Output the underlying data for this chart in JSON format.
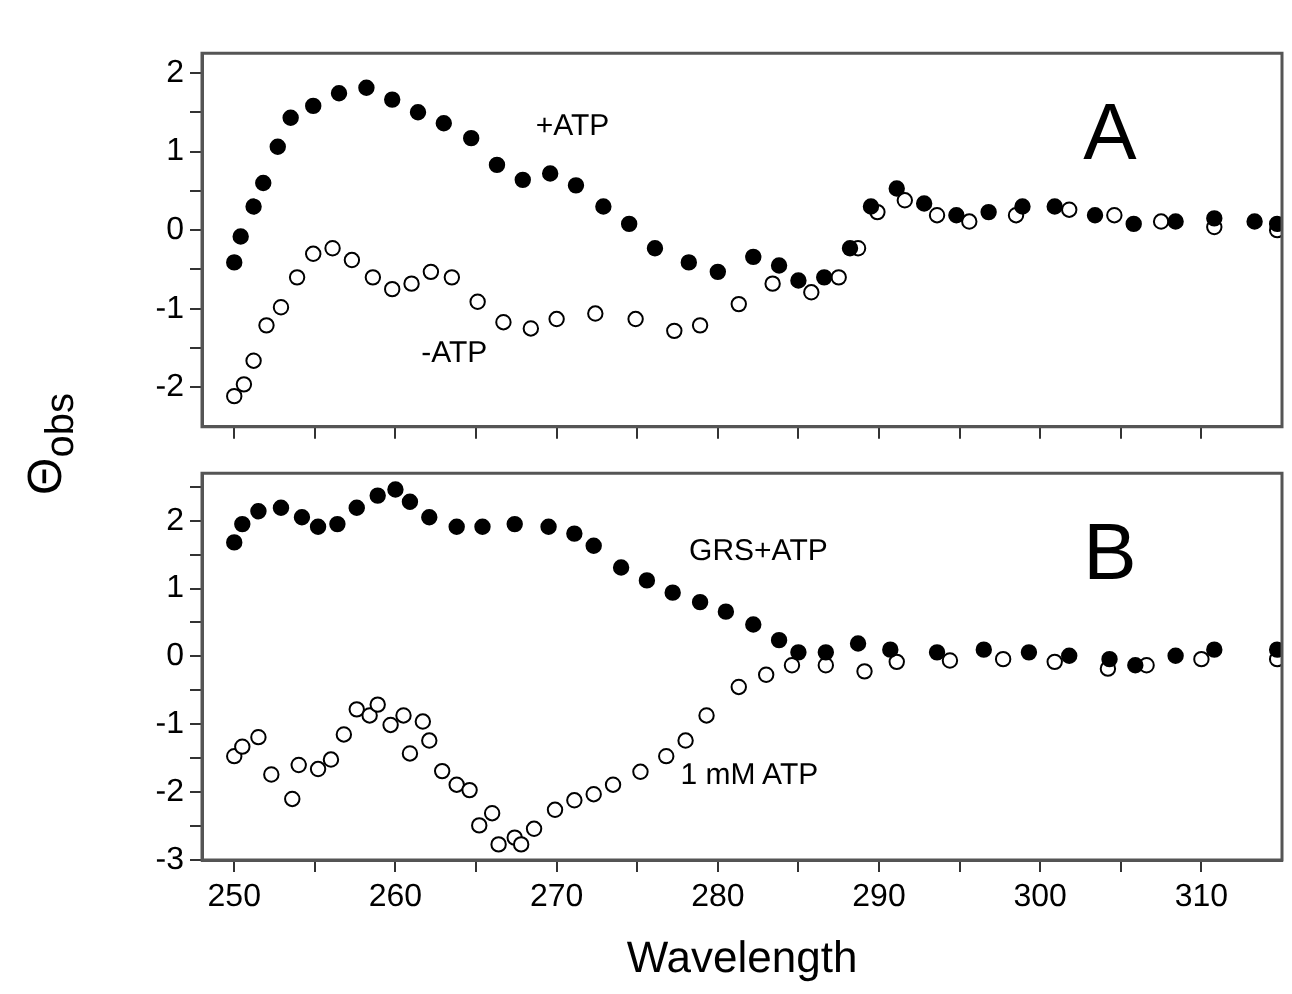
{
  "chart_data": [
    {
      "type": "scatter",
      "ylabel": "Θ$_{obs}$",
      "xlim": [
        248,
        315
      ],
      "ylim": [
        -2.5,
        2.25
      ],
      "xticks": [
        250,
        {
          "value": 255,
          "label": null
        },
        260,
        {
          "value": 265,
          "label": null
        },
        270,
        {
          "value": 275,
          "label": null
        },
        280,
        {
          "value": 285,
          "label": null
        },
        290,
        {
          "value": 295,
          "label": null
        },
        300,
        {
          "value": 305,
          "label": null
        },
        310
      ],
      "yticks": [
        -2,
        {
          "value": -1.5,
          "label": null
        },
        -1,
        {
          "value": -0.5,
          "label": null
        },
        0,
        {
          "value": 0.5,
          "label": null
        },
        1,
        {
          "value": 1.5,
          "label": null
        },
        2
      ],
      "tick_labels": "y",
      "grid": false,
      "legend": false,
      "marker": "circle",
      "annotations": [
        "A",
        "+ATP",
        "-ATP"
      ],
      "series": [
        {
          "color": "#000000",
          "x": [
            250,
            250.4,
            251.2,
            251.8,
            252.7,
            253.5,
            254.9,
            256.5,
            258.2,
            259.8,
            261.4,
            263,
            264.7,
            266.3,
            267.9,
            269.6,
            271.2,
            272.9,
            274.5,
            276.1,
            278.2,
            280,
            282.2,
            283.8,
            285,
            286.6,
            288.2,
            289.5,
            291.1,
            292.8,
            294.8,
            296.8,
            298.9,
            300.9,
            303.4,
            305.8,
            308.4,
            310.8,
            313.3,
            314.7
          ],
          "values": [
            -0.41,
            -0.08,
            0.3,
            0.6,
            1.06,
            1.43,
            1.58,
            1.74,
            1.81,
            1.66,
            1.5,
            1.36,
            1.17,
            0.83,
            0.64,
            0.72,
            0.57,
            0.3,
            0.08,
            -0.23,
            -0.41,
            -0.53,
            -0.34,
            -0.45,
            -0.64,
            -0.6,
            -0.23,
            0.3,
            0.53,
            0.34,
            0.19,
            0.23,
            0.3,
            0.3,
            0.19,
            0.08,
            0.11,
            0.15,
            0.11,
            0.08
          ]
        },
        {
          "color": "#000000",
          "x": [
            250,
            250.6,
            251.2,
            252,
            252.9,
            253.9,
            254.9,
            256.1,
            257.3,
            258.6,
            259.8,
            261,
            262.2,
            263.5,
            265.1,
            266.7,
            268.4,
            270,
            272.4,
            274.9,
            277.3,
            278.9,
            281.3,
            283.4,
            285.8,
            287.5,
            288.7,
            289.9,
            291.6,
            293.6,
            295.6,
            298.5,
            301.8,
            304.6,
            307.5,
            310.8,
            314.7
          ],
          "values": [
            -2.11,
            -1.96,
            -1.66,
            -1.21,
            -0.98,
            -0.6,
            -0.3,
            -0.23,
            -0.38,
            -0.6,
            -0.75,
            -0.68,
            -0.53,
            -0.6,
            -0.91,
            -1.17,
            -1.25,
            -1.13,
            -1.06,
            -1.13,
            -1.28,
            -1.21,
            -0.94,
            -0.68,
            -0.79,
            -0.6,
            -0.23,
            0.23,
            0.38,
            0.19,
            0.11,
            0.19,
            0.26,
            0.19,
            0.11,
            0.04,
            0
          ]
        }
      ]
    },
    {
      "type": "scatter",
      "xlabel": "Wavelength",
      "xlim": [
        248,
        315
      ],
      "ylim": [
        -3,
        2.7
      ],
      "xticks": [
        250,
        {
          "value": 255,
          "label": null
        },
        260,
        {
          "value": 265,
          "label": null
        },
        270,
        {
          "value": 275,
          "label": null
        },
        280,
        {
          "value": 285,
          "label": null
        },
        290,
        {
          "value": 295,
          "label": null
        },
        300,
        {
          "value": 305,
          "label": null
        },
        310
      ],
      "yticks": [
        -3,
        {
          "value": -2.5,
          "label": null
        },
        -2,
        {
          "value": -1.5,
          "label": null
        },
        -1,
        {
          "value": -0.5,
          "label": null
        },
        0,
        {
          "value": 0.5,
          "label": null
        },
        1,
        {
          "value": 1.5,
          "label": null
        },
        2,
        {
          "value": 2.5,
          "label": null
        }
      ],
      "grid": false,
      "legend": false,
      "marker": "circle",
      "annotations": [
        "B",
        "GRS+ATP",
        "1 mM ATP"
      ],
      "series": [
        {
          "color": "#000000",
          "x": [
            250,
            250.5,
            251.5,
            252.9,
            254.2,
            255.2,
            256.4,
            257.6,
            258.9,
            260,
            260.9,
            262.1,
            263.8,
            265.4,
            267.4,
            269.5,
            271.1,
            272.3,
            274,
            275.6,
            277.2,
            278.9,
            280.5,
            282.2,
            283.8,
            285,
            286.7,
            288.7,
            290.7,
            293.6,
            296.5,
            299.3,
            301.8,
            304.3,
            305.9,
            308.4,
            310.8,
            314.7
          ],
          "values": [
            1.68,
            1.95,
            2.14,
            2.19,
            2.05,
            1.91,
            1.95,
            2.19,
            2.37,
            2.46,
            2.28,
            2.05,
            1.91,
            1.91,
            1.95,
            1.91,
            1.81,
            1.63,
            1.31,
            1.12,
            0.94,
            0.8,
            0.66,
            0.47,
            0.24,
            0.06,
            0.06,
            0.19,
            0.1,
            0.06,
            0.1,
            0.06,
            0.01,
            -0.04,
            -0.13,
            0.01,
            0.1,
            0.1
          ]
        },
        {
          "color": "#000000",
          "x": [
            250,
            250.5,
            251.5,
            252.3,
            253.6,
            254,
            255.2,
            256,
            256.8,
            257.6,
            258.4,
            258.9,
            259.7,
            260.5,
            260.9,
            261.7,
            262.1,
            262.9,
            263.8,
            264.6,
            265.2,
            266,
            266.4,
            267.4,
            267.8,
            268.6,
            269.9,
            271.1,
            272.3,
            273.5,
            275.2,
            276.8,
            278,
            279.3,
            281.3,
            283,
            284.6,
            286.7,
            289.1,
            291.1,
            294.4,
            297.7,
            300.9,
            304.2,
            306.6,
            310,
            314.7
          ],
          "values": [
            -1.47,
            -1.33,
            -1.19,
            -1.74,
            -2.1,
            -1.6,
            -1.66,
            -1.52,
            -1.15,
            -0.78,
            -0.87,
            -0.71,
            -1.01,
            -0.87,
            -1.43,
            -0.96,
            -1.24,
            -1.69,
            -1.89,
            -1.97,
            -2.49,
            -2.31,
            -2.77,
            -2.67,
            -2.77,
            -2.54,
            -2.26,
            -2.12,
            -2.03,
            -1.89,
            -1.7,
            -1.47,
            -1.24,
            -0.87,
            -0.45,
            -0.27,
            -0.13,
            -0.13,
            -0.22,
            -0.08,
            -0.06,
            -0.04,
            -0.08,
            -0.18,
            -0.13,
            -0.04,
            -0.04
          ]
        }
      ]
    }
  ]
}
